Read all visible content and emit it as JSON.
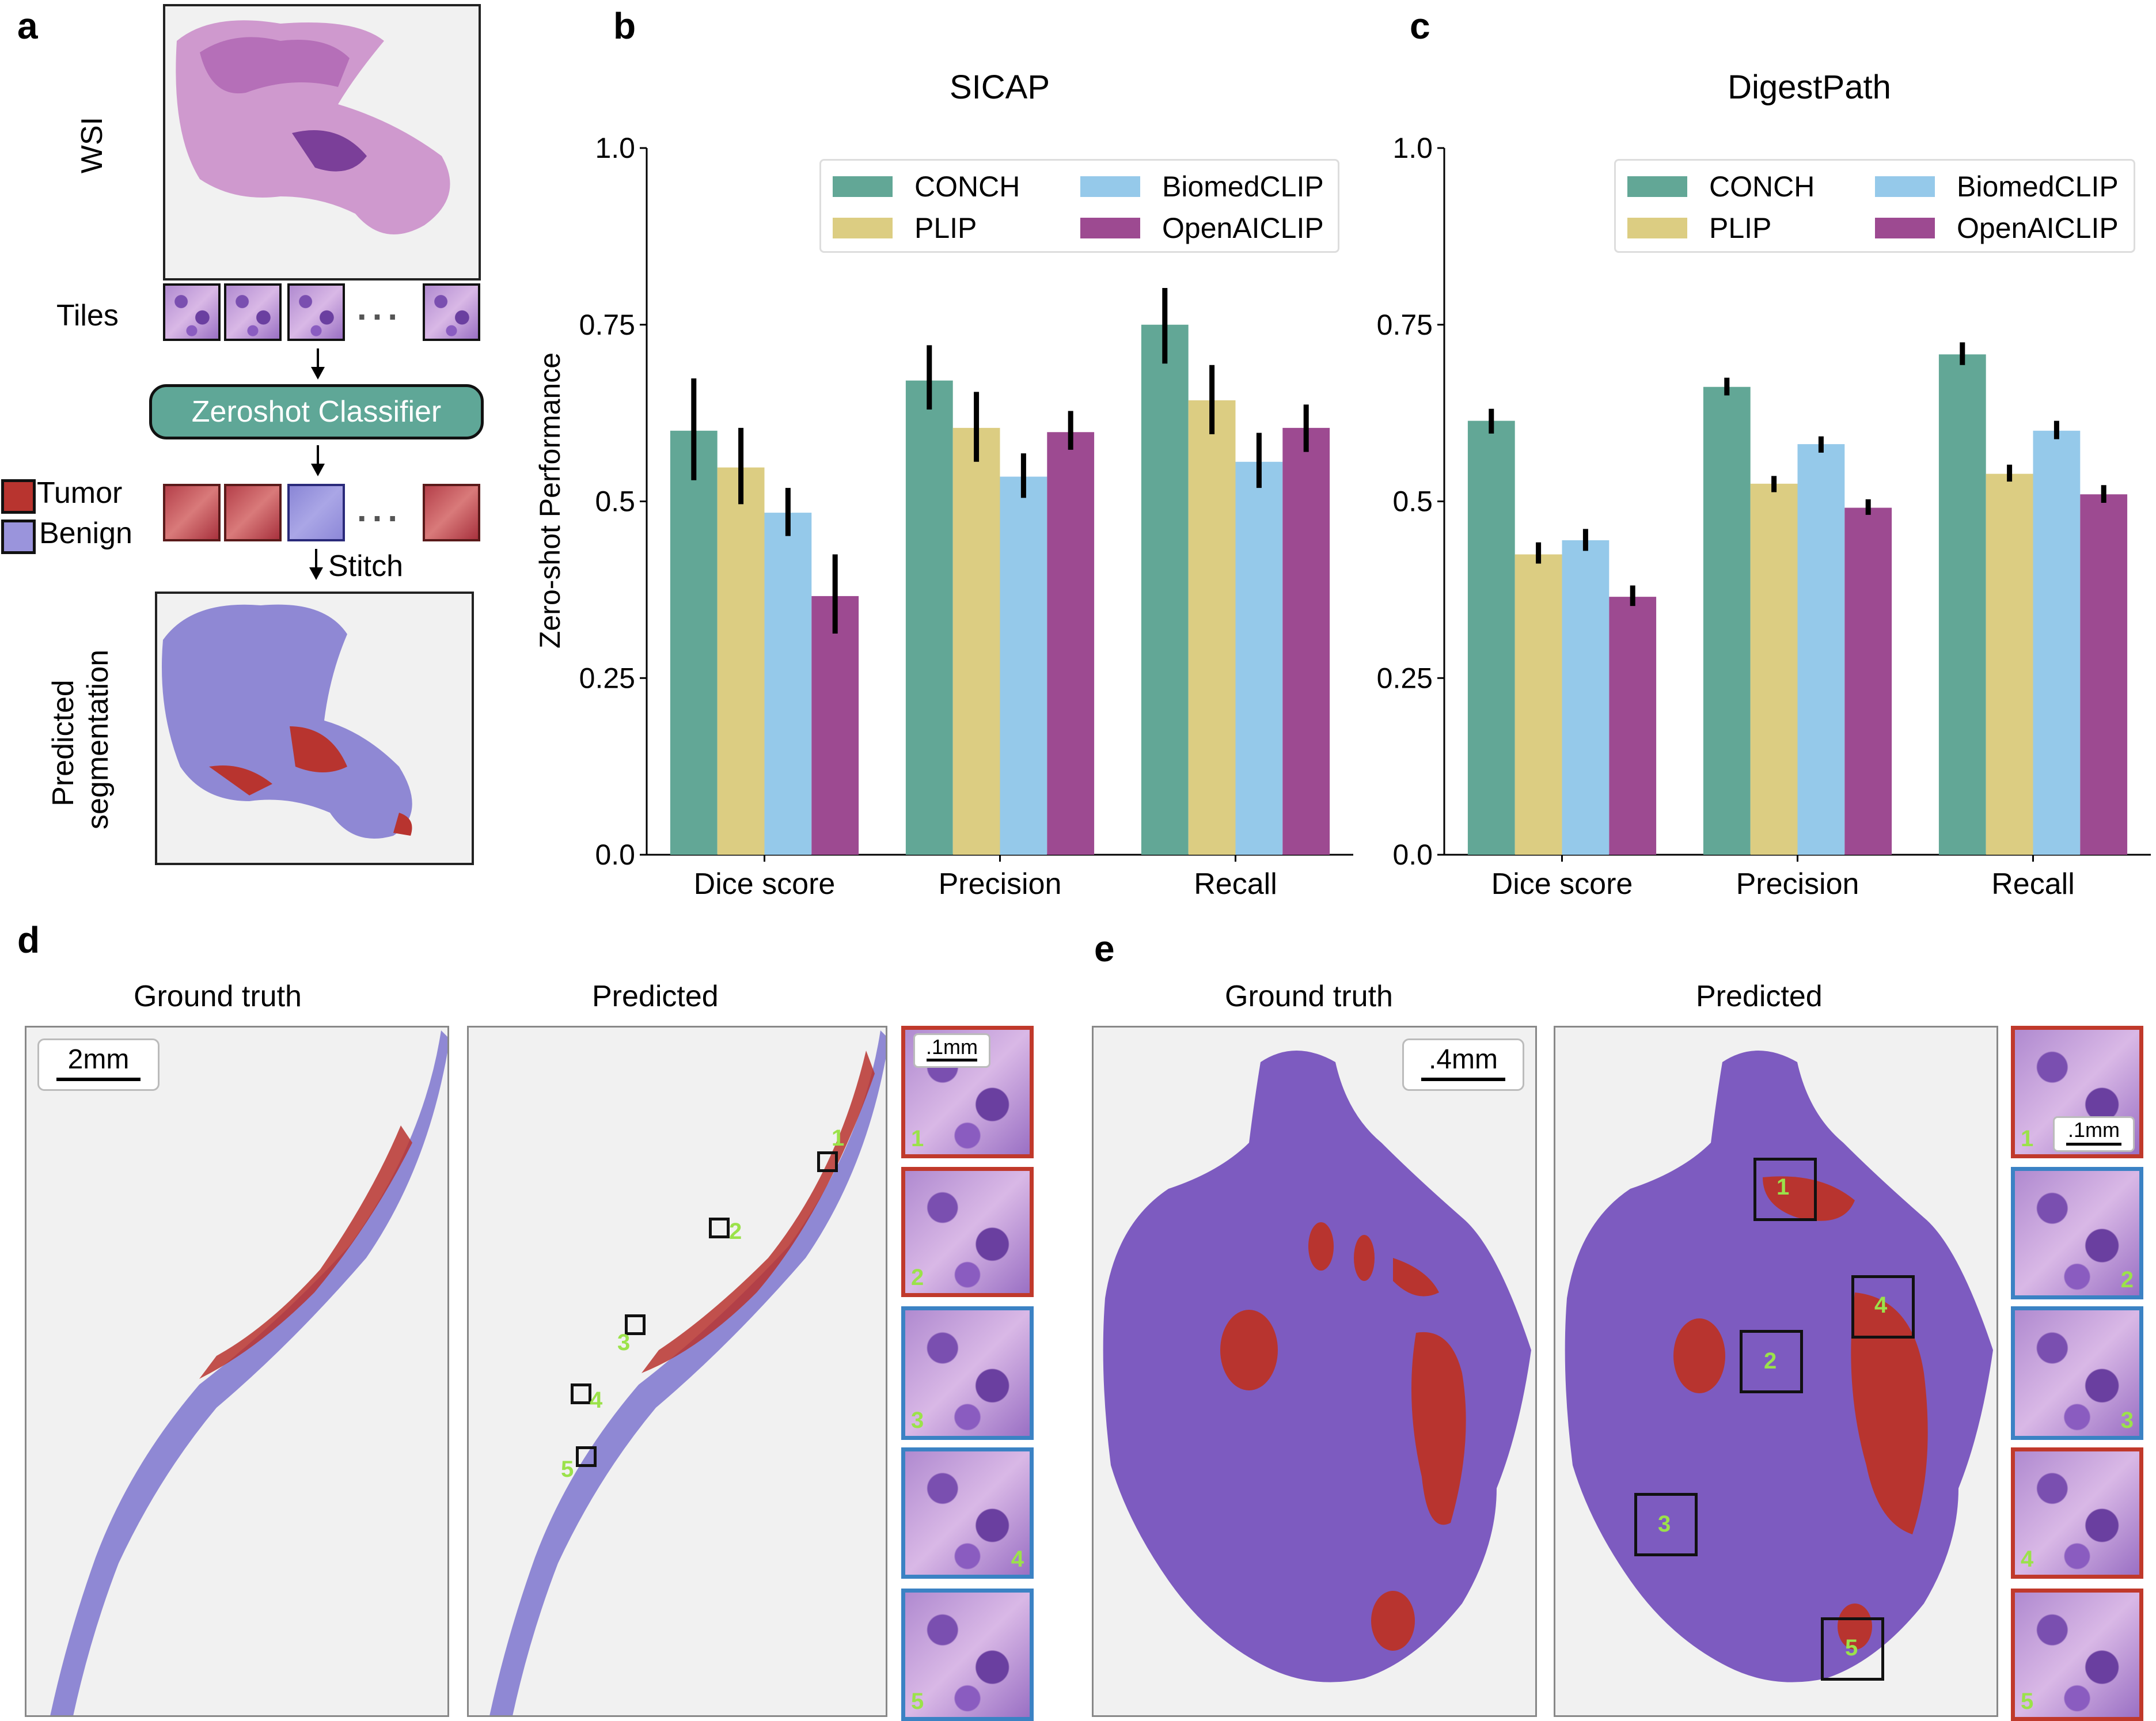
{
  "panel_a": {
    "letter": "a",
    "wsi_label": "WSI",
    "tiles_label": "Tiles",
    "ellipsis": "...",
    "classifier_label": "Zeroshot Classifier",
    "legend": [
      {
        "label": "Tumor",
        "color": "#b8342f"
      },
      {
        "label": "Benign",
        "color": "#9a94dc"
      }
    ],
    "stitch_label": "Stitch",
    "segmentation_label_line1": "Predicted",
    "segmentation_label_line2": "segmentation"
  },
  "panel_b": {
    "letter": "b"
  },
  "panel_c": {
    "letter": "c"
  },
  "chart_data": [
    {
      "type": "bar",
      "title": "SICAP",
      "ylabel": "Zero-shot Performance",
      "xlabel": "",
      "ylim": [
        0,
        1.0
      ],
      "yticks": [
        "0.0",
        "0.25",
        "0.5",
        "0.75",
        "1.0"
      ],
      "grid": false,
      "legend_position": "top-right",
      "categories": [
        "Dice score",
        "Precision",
        "Recall"
      ],
      "series": [
        {
          "name": "CONCH",
          "color": "#62a796",
          "values": [
            0.6,
            0.671,
            0.75
          ],
          "err_low": [
            0.53,
            0.63,
            0.695
          ],
          "err_high": [
            0.674,
            0.721,
            0.802
          ]
        },
        {
          "name": "PLIP",
          "color": "#dccd82",
          "values": [
            0.548,
            0.604,
            0.643
          ],
          "err_low": [
            0.496,
            0.556,
            0.595
          ],
          "err_high": [
            0.604,
            0.655,
            0.693
          ]
        },
        {
          "name": "BiomedCLIP",
          "color": "#95c9ea",
          "values": [
            0.484,
            0.535,
            0.556
          ],
          "err_low": [
            0.451,
            0.505,
            0.519
          ],
          "err_high": [
            0.519,
            0.568,
            0.597
          ]
        },
        {
          "name": "OpenAICLIP",
          "color": "#9d4a91",
          "values": [
            0.366,
            0.598,
            0.604
          ],
          "err_low": [
            0.313,
            0.573,
            0.57
          ],
          "err_high": [
            0.425,
            0.628,
            0.637
          ]
        }
      ]
    },
    {
      "type": "bar",
      "title": "DigestPath",
      "ylabel": "",
      "xlabel": "",
      "ylim": [
        0,
        1.0
      ],
      "yticks": [
        "0.0",
        "0.25",
        "0.5",
        "0.75",
        "1.0"
      ],
      "grid": false,
      "legend_position": "top-right",
      "categories": [
        "Dice score",
        "Precision",
        "Recall"
      ],
      "series": [
        {
          "name": "CONCH",
          "color": "#62a796",
          "values": [
            0.614,
            0.662,
            0.708
          ],
          "err_low": [
            0.596,
            0.65,
            0.693
          ],
          "err_high": [
            0.631,
            0.675,
            0.725
          ]
        },
        {
          "name": "PLIP",
          "color": "#dccd82",
          "values": [
            0.425,
            0.525,
            0.539
          ],
          "err_low": [
            0.412,
            0.513,
            0.528
          ],
          "err_high": [
            0.442,
            0.536,
            0.552
          ]
        },
        {
          "name": "BiomedCLIP",
          "color": "#95c9ea",
          "values": [
            0.445,
            0.581,
            0.6
          ],
          "err_low": [
            0.43,
            0.569,
            0.588
          ],
          "err_high": [
            0.461,
            0.592,
            0.614
          ]
        },
        {
          "name": "OpenAICLIP",
          "color": "#9d4a91",
          "values": [
            0.365,
            0.491,
            0.51
          ],
          "err_low": [
            0.352,
            0.481,
            0.498
          ],
          "err_high": [
            0.381,
            0.503,
            0.523
          ]
        }
      ]
    }
  ],
  "panel_d": {
    "letter": "d",
    "ground_truth_title": "Ground truth",
    "predicted_title": "Predicted",
    "scale_bar": "2mm",
    "inset_scale_bar": ".1mm",
    "insets": [
      {
        "num": "1",
        "class": "tumor"
      },
      {
        "num": "2",
        "class": "tumor"
      },
      {
        "num": "3",
        "class": "benign"
      },
      {
        "num": "4",
        "class": "benign"
      },
      {
        "num": "5",
        "class": "benign"
      }
    ]
  },
  "panel_e": {
    "letter": "e",
    "ground_truth_title": "Ground truth",
    "predicted_title": "Predicted",
    "scale_bar": ".4mm",
    "inset_scale_bar": ".1mm",
    "insets": [
      {
        "num": "1",
        "class": "tumor"
      },
      {
        "num": "2",
        "class": "benign"
      },
      {
        "num": "3",
        "class": "benign"
      },
      {
        "num": "4",
        "class": "tumor"
      },
      {
        "num": "5",
        "class": "tumor"
      }
    ]
  },
  "colors": {
    "tumor_border": "#c0392b",
    "benign_border": "#3b82c4",
    "marker_number": "#9be24a"
  }
}
